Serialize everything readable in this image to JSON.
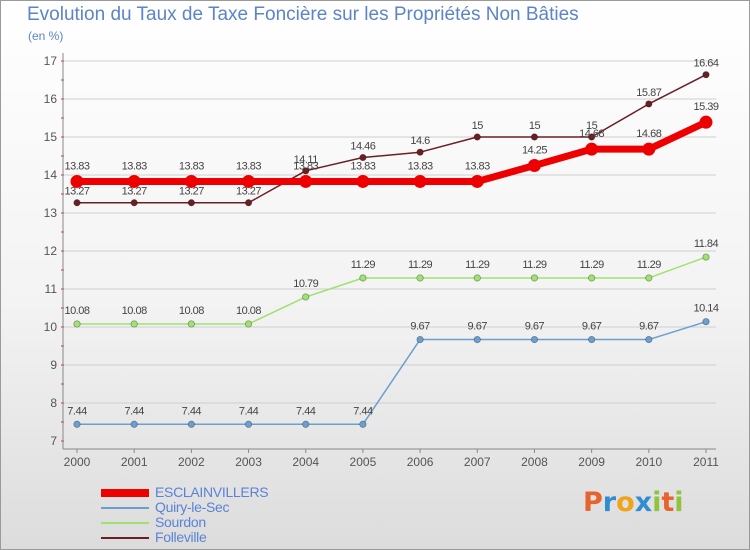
{
  "title": "Evolution du Taux de Taxe Foncière sur les Propriétés Non Bâties",
  "unit_label": "(en %)",
  "logo": {
    "text": "Proxiti",
    "letters": [
      "P",
      "r",
      "o",
      "x",
      "i",
      "t",
      "i"
    ]
  },
  "colors": {
    "ESCLAINVILLERS": "#ee0000",
    "Quiry-le-Sec": "#6a9fd0",
    "Sourdon": "#9ee36f",
    "Folleville": "#6b1f25",
    "axis": "#888888",
    "grid": "#cfcfcf",
    "text": "#555555",
    "logo": [
      "#e7622d",
      "#2f8dd0",
      "#f0a419",
      "#2f8dd0",
      "#8fc43d",
      "#e7622d",
      "#8fc43d"
    ]
  },
  "chart_data": {
    "type": "line",
    "title": "Evolution du Taux de Taxe Foncière sur les Propriétés Non Bâties",
    "ylabel": "(en %)",
    "xlabel": "",
    "x": [
      "2000",
      "2001",
      "2002",
      "2003",
      "2004",
      "2005",
      "2006",
      "2007",
      "2008",
      "2009",
      "2010",
      "2011"
    ],
    "ylim": [
      7,
      17
    ],
    "yticks": [
      7,
      8,
      9,
      10,
      11,
      12,
      13,
      14,
      15,
      16,
      17
    ],
    "grid": true,
    "legend_position": "bottom-left",
    "series": [
      {
        "name": "Folleville",
        "values": [
          13.27,
          13.27,
          13.27,
          13.27,
          14.11,
          14.46,
          14.6,
          15,
          15,
          15,
          15.87,
          16.64
        ],
        "labels": [
          "13.27",
          "13.27",
          "13.27",
          "13.27",
          "14.11",
          "14.46",
          "14.6",
          "15",
          "15",
          "15",
          "15.87",
          "16.64"
        ]
      },
      {
        "name": "Sourdon",
        "values": [
          10.08,
          10.08,
          10.08,
          10.08,
          10.79,
          11.29,
          11.29,
          11.29,
          11.29,
          11.29,
          11.29,
          11.84
        ],
        "labels": [
          "10.08",
          "10.08",
          "10.08",
          "10.08",
          "10.79",
          "11.29",
          "11.29",
          "11.29",
          "11.29",
          "11.29",
          "11.29",
          "11.84"
        ]
      },
      {
        "name": "Quiry-le-Sec",
        "values": [
          7.44,
          7.44,
          7.44,
          7.44,
          7.44,
          7.44,
          9.67,
          9.67,
          9.67,
          9.67,
          9.67,
          10.14
        ],
        "labels": [
          "7.44",
          "7.44",
          "7.44",
          "7.44",
          "7.44",
          "7.44",
          "9.67",
          "9.67",
          "9.67",
          "9.67",
          "9.67",
          "10.14"
        ]
      },
      {
        "name": "ESCLAINVILLERS",
        "values": [
          13.83,
          13.83,
          13.83,
          13.83,
          13.83,
          13.83,
          13.83,
          13.83,
          14.25,
          14.68,
          14.68,
          15.39
        ],
        "labels": [
          "13.83",
          "13.83",
          "13.83",
          "13.83",
          "13.83",
          "13.83",
          "13.83",
          "13.83",
          "14.25",
          "14.68",
          "14.68",
          "15.39"
        ]
      }
    ]
  },
  "legend": [
    {
      "name": "ESCLAINVILLERS"
    },
    {
      "name": "Quiry-le-Sec"
    },
    {
      "name": "Sourdon"
    },
    {
      "name": "Folleville"
    }
  ]
}
